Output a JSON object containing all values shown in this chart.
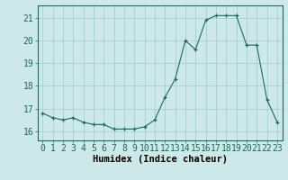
{
  "x": [
    0,
    1,
    2,
    3,
    4,
    5,
    6,
    7,
    8,
    9,
    10,
    11,
    12,
    13,
    14,
    15,
    16,
    17,
    18,
    19,
    20,
    21,
    22,
    23
  ],
  "y": [
    16.8,
    16.6,
    16.5,
    16.6,
    16.4,
    16.3,
    16.3,
    16.1,
    16.1,
    16.1,
    16.2,
    16.5,
    17.5,
    18.3,
    20.0,
    19.6,
    20.9,
    21.1,
    21.1,
    21.1,
    19.8,
    19.8,
    17.4,
    16.4
  ],
  "bg_color": "#cde8e8",
  "grid_color": "#aacfcf",
  "line_color": "#1a6b5a",
  "marker_color": "#1a6b5a",
  "xlabel": "Humidex (Indice chaleur)",
  "ylim": [
    15.6,
    21.55
  ],
  "xlim": [
    -0.5,
    23.5
  ],
  "yticks": [
    16,
    17,
    18,
    19,
    20,
    21
  ],
  "xticks": [
    0,
    1,
    2,
    3,
    4,
    5,
    6,
    7,
    8,
    9,
    10,
    11,
    12,
    13,
    14,
    15,
    16,
    17,
    18,
    19,
    20,
    21,
    22,
    23
  ],
  "xlabel_fontsize": 7.5,
  "tick_fontsize": 7
}
